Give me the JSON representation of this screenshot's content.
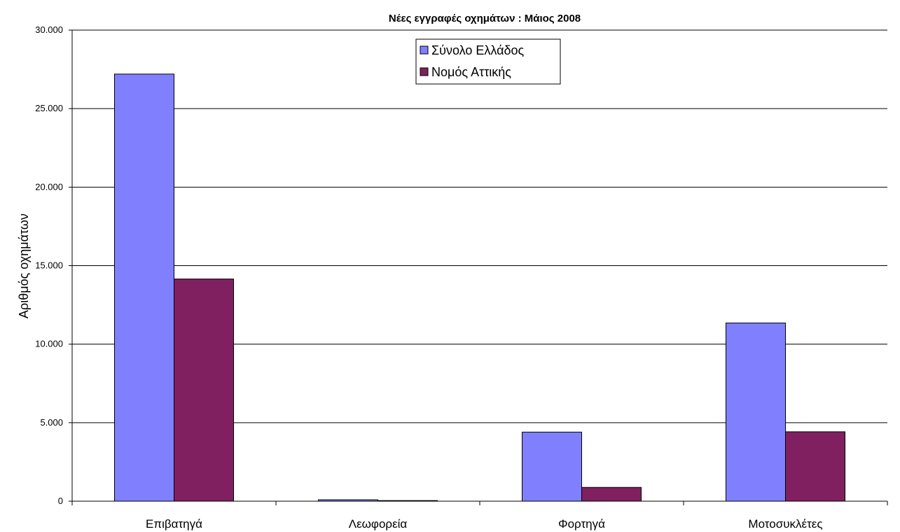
{
  "chart_data": {
    "type": "bar",
    "title": "Νέες εγγραφές οχημάτων : Μάιος 2008",
    "xlabel": "",
    "ylabel": "Αριθμός οχημάτων",
    "categories": [
      "Επιβατηγά",
      "Λεωφορεία",
      "Φορτηγά",
      "Μοτοσυκλέτες"
    ],
    "series": [
      {
        "name": "Σύνολο Ελλάδος",
        "values": [
          27200,
          90,
          4400,
          11350
        ],
        "color": "#8080FF"
      },
      {
        "name": "Νομός Αττικής",
        "values": [
          14150,
          40,
          880,
          4420
        ],
        "color": "#802060"
      }
    ],
    "ylim": [
      0,
      30000
    ],
    "yticks": [
      0,
      5000,
      10000,
      15000,
      20000,
      25000,
      30000
    ],
    "ytick_labels": [
      "0",
      "5.000",
      "10.000",
      "15.000",
      "20.000",
      "25.000",
      "30.000"
    ],
    "grid": true,
    "legend_position": "top-center"
  }
}
